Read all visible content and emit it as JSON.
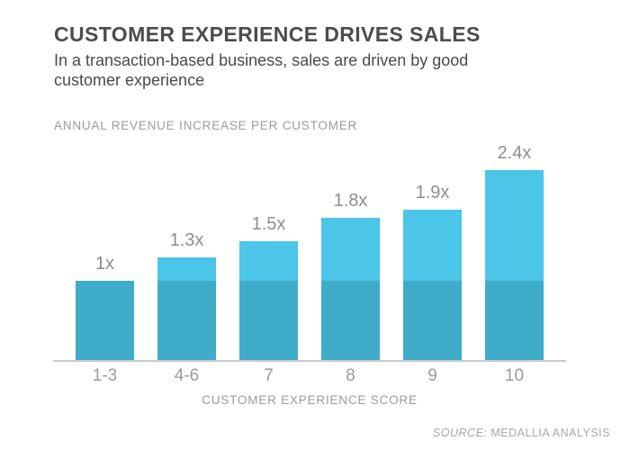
{
  "page": {
    "background": "#FFFFFF"
  },
  "header": {
    "title": "CUSTOMER EXPERIENCE DRIVES SALES",
    "subtitle_lines": [
      "In a transaction-based business, sales are driven by good",
      "customer experience"
    ]
  },
  "chart_data": {
    "type": "bar",
    "title": "ANNUAL REVENUE INCREASE PER CUSTOMER",
    "xlabel": "CUSTOMER EXPERIENCE SCORE",
    "ylabel": "",
    "categories": [
      "1-3",
      "4-6",
      "7",
      "8",
      "9",
      "10"
    ],
    "values": [
      1,
      1.3,
      1.5,
      1.8,
      1.9,
      2.4
    ],
    "bar_labels": [
      "1x",
      "1.3x",
      "1.5x",
      "1.8x",
      "1.9x",
      "2.4x"
    ],
    "baseline_value": 1,
    "ylim": [
      0,
      2.6
    ],
    "grid": false,
    "legend": false,
    "colors": {
      "bar_above_baseline": "#4BC5E8",
      "bar_baseline": "#3FACC9",
      "axis_line": "#C9C9C9",
      "value_label": "#8E8E8E",
      "tick_label": "#9B9B9B"
    }
  },
  "source": {
    "prefix": "SOURCE:",
    "label": "MEDALLIA ANALYSIS"
  }
}
